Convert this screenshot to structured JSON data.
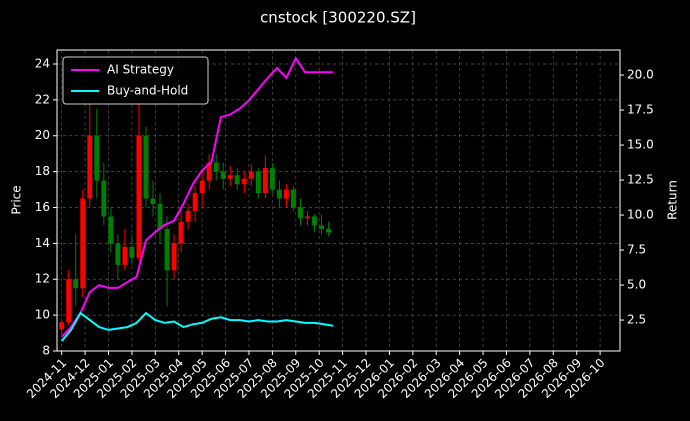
{
  "chart_data": {
    "type": "candlestick",
    "title": "cnstock [300220.SZ]",
    "ylabel": "Price",
    "y2label": "Return",
    "xlim": [
      -0.2,
      23.85
    ],
    "xticks": [
      {
        "value": 0,
        "label": "2024-11"
      },
      {
        "value": 1,
        "label": "2024-12"
      },
      {
        "value": 2,
        "label": "2025-01"
      },
      {
        "value": 3,
        "label": "2025-02"
      },
      {
        "value": 4,
        "label": "2025-03"
      },
      {
        "value": 5,
        "label": "2025-04"
      },
      {
        "value": 6,
        "label": "2025-05"
      },
      {
        "value": 7,
        "label": "2025-06"
      },
      {
        "value": 8,
        "label": "2025-07"
      },
      {
        "value": 9,
        "label": "2025-08"
      },
      {
        "value": 10,
        "label": "2025-09"
      },
      {
        "value": 11,
        "label": "2025-10"
      },
      {
        "value": 12,
        "label": "2025-11"
      },
      {
        "value": 13,
        "label": "2025-12"
      },
      {
        "value": 14,
        "label": "2026-01"
      },
      {
        "value": 15,
        "label": "2026-02"
      },
      {
        "value": 16,
        "label": "2026-03"
      },
      {
        "value": 17,
        "label": "2026-04"
      },
      {
        "value": 18,
        "label": "2026-05"
      },
      {
        "value": 19,
        "label": "2026-06"
      },
      {
        "value": 20,
        "label": "2026-07"
      },
      {
        "value": 21,
        "label": "2026-08"
      },
      {
        "value": 22,
        "label": "2026-09"
      },
      {
        "value": 23,
        "label": "2026-10"
      }
    ],
    "ylim": [
      8,
      24.78
    ],
    "yticks": [
      8,
      10,
      12,
      14,
      16,
      18,
      20,
      22,
      24
    ],
    "y2lim": [
      0.29,
      21.79
    ],
    "y2ticks": [
      {
        "value": 2.5,
        "label": "2.5"
      },
      {
        "value": 5,
        "label": "5.0"
      },
      {
        "value": 7.5,
        "label": "7.5"
      },
      {
        "value": 10,
        "label": "10.0"
      },
      {
        "value": 12.5,
        "label": "12.5"
      },
      {
        "value": 15,
        "label": "15.0"
      },
      {
        "value": 17.5,
        "label": "17.5"
      },
      {
        "value": 20,
        "label": "20.0"
      }
    ],
    "grid": true,
    "legend": "upper left",
    "up_color": "#ff0000",
    "down_color": "#008000",
    "x": [
      0,
      0.3,
      0.6,
      0.9,
      1.2,
      1.5,
      1.8,
      2.1,
      2.4,
      2.7,
      3.0,
      3.3,
      3.6,
      3.9,
      4.2,
      4.5,
      4.8,
      5.1,
      5.4,
      5.7,
      6.0,
      6.3,
      6.6,
      6.9,
      7.2,
      7.5,
      7.8,
      8.1,
      8.4,
      8.7,
      9.0,
      9.3,
      9.6,
      9.9,
      10.2,
      10.5,
      10.8,
      11.1,
      11.4
    ],
    "open": [
      9.2,
      9.6,
      12.0,
      11.5,
      16.5,
      20.0,
      17.5,
      15.5,
      14.0,
      12.8,
      13.8,
      13.2,
      20.0,
      16.5,
      16.2,
      14.8,
      12.5,
      14.0,
      15.2,
      15.8,
      16.8,
      17.5,
      18.5,
      18.0,
      17.6,
      17.8,
      17.3,
      17.6,
      18.0,
      16.8,
      18.2,
      17.0,
      16.5,
      17.0,
      16.0,
      15.4,
      15.5,
      15.0,
      14.8
    ],
    "high": [
      9.8,
      12.5,
      14.5,
      17.0,
      22.0,
      21.5,
      18.5,
      16.0,
      14.5,
      14.8,
      14.5,
      21.8,
      20.5,
      17.5,
      16.8,
      15.5,
      14.5,
      15.8,
      16.2,
      17.2,
      18.0,
      19.0,
      19.0,
      18.5,
      18.3,
      18.2,
      18.0,
      18.4,
      18.2,
      18.9,
      18.5,
      17.5,
      17.3,
      17.2,
      16.5,
      15.8,
      15.6,
      15.6,
      15.2
    ],
    "low": [
      8.9,
      9.4,
      10.5,
      11.0,
      16.0,
      16.5,
      15.0,
      13.5,
      12.0,
      12.5,
      12.8,
      13.0,
      16.0,
      15.5,
      14.0,
      10.5,
      12.0,
      13.5,
      14.8,
      15.2,
      16.0,
      17.0,
      17.5,
      17.0,
      17.2,
      17.0,
      16.8,
      17.2,
      16.5,
      16.5,
      16.8,
      16.0,
      16.0,
      15.8,
      15.0,
      15.0,
      14.6,
      14.5,
      14.4
    ],
    "close": [
      9.6,
      12.0,
      11.5,
      16.5,
      20.0,
      17.5,
      15.5,
      14.0,
      12.8,
      13.8,
      13.2,
      20.0,
      16.5,
      16.2,
      14.8,
      12.5,
      14.0,
      15.2,
      15.8,
      16.8,
      17.5,
      18.5,
      18.0,
      17.6,
      17.8,
      17.3,
      17.6,
      18.0,
      16.8,
      18.2,
      17.0,
      16.5,
      17.0,
      16.0,
      15.4,
      15.5,
      15.0,
      14.8,
      14.6
    ],
    "lines": {
      "x": [
        0,
        0.4,
        0.8,
        1.2,
        1.6,
        2.0,
        2.4,
        2.8,
        3.2,
        3.6,
        4.0,
        4.4,
        4.8,
        5.2,
        5.6,
        6.0,
        6.4,
        6.8,
        7.2,
        7.6,
        8.0,
        8.4,
        8.8,
        9.2,
        9.6,
        10.0,
        10.4,
        10.8,
        11.2,
        11.6
      ],
      "series": [
        {
          "name": "AI Strategy",
          "color": "#ff00ff",
          "axis": "y2",
          "values": [
            1.3,
            2.0,
            3.0,
            4.5,
            5.0,
            4.8,
            4.8,
            5.2,
            5.6,
            8.2,
            8.8,
            9.3,
            9.6,
            10.8,
            12.2,
            13.2,
            13.8,
            17.0,
            17.2,
            17.6,
            18.2,
            19.0,
            19.8,
            20.5,
            19.8,
            21.2,
            20.2,
            20.2,
            20.2,
            20.2
          ]
        },
        {
          "name": "Buy-and-Hold",
          "color": "#00ffff",
          "axis": "y2",
          "values": [
            1.0,
            1.8,
            3.0,
            2.5,
            2.0,
            1.8,
            1.9,
            2.0,
            2.3,
            3.0,
            2.5,
            2.3,
            2.4,
            2.0,
            2.2,
            2.3,
            2.6,
            2.7,
            2.5,
            2.5,
            2.4,
            2.5,
            2.4,
            2.4,
            2.5,
            2.4,
            2.3,
            2.3,
            2.2,
            2.1
          ]
        }
      ]
    }
  }
}
